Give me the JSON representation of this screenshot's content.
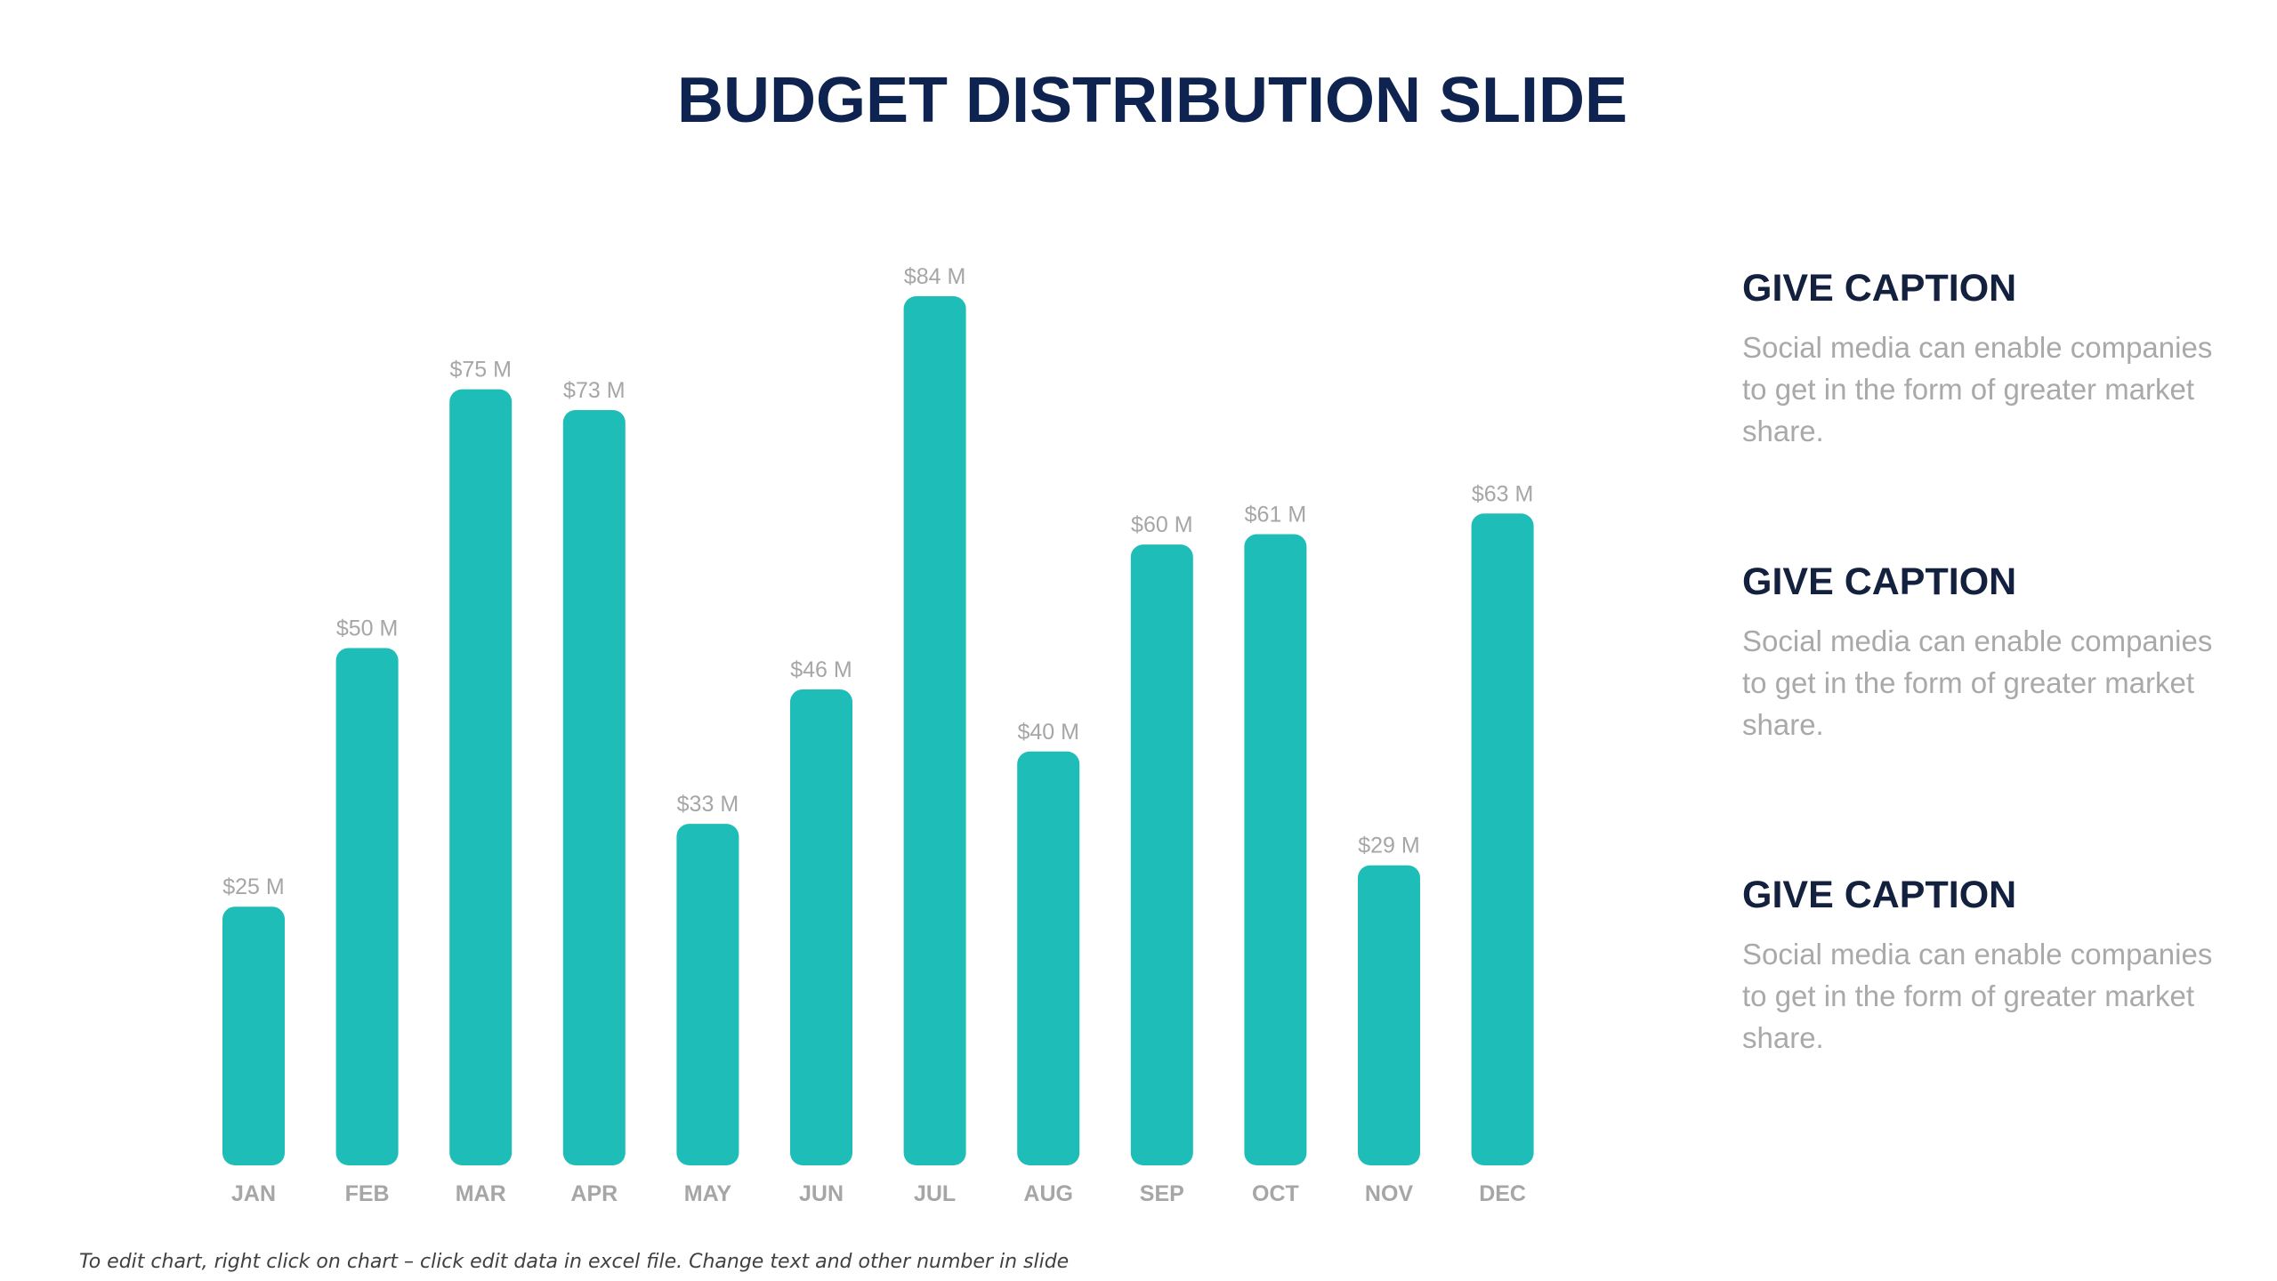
{
  "slide": {
    "title": "BUDGET DISTRIBUTION SLIDE",
    "footnote": "To edit chart, right click on chart – click edit data in excel file. Change text and other number in slide"
  },
  "captions": [
    {
      "heading": "GIVE CAPTION",
      "body": "Social media can enable companies to get in the form of greater market share."
    },
    {
      "heading": "GIVE CAPTION",
      "body": "Social media can enable companies to get in the form of greater market share."
    },
    {
      "heading": "GIVE CAPTION",
      "body": "Social media can enable companies to get in the form of greater market share."
    }
  ],
  "colors": {
    "bar": "#1ebdb7",
    "title": "#0f2350",
    "data_label": "#a6a6a6",
    "tick_label": "#a6a6a6"
  },
  "chart_data": {
    "type": "bar",
    "title": "",
    "xlabel": "",
    "ylabel": "",
    "categories": [
      "JAN",
      "FEB",
      "MAR",
      "APR",
      "MAY",
      "JUN",
      "JUL",
      "AUG",
      "SEP",
      "OCT",
      "NOV",
      "DEC"
    ],
    "values": [
      25,
      50,
      75,
      73,
      33,
      46,
      84,
      40,
      60,
      61,
      29,
      63
    ],
    "data_labels": [
      "$25 M",
      "$50 M",
      "$75 M",
      "$73 M",
      "$33 M",
      "$46 M",
      "$84 M",
      "$40 M",
      "$60 M",
      "$61 M",
      "$29 M",
      "$63 M"
    ],
    "ylim": [
      0,
      84
    ],
    "grid": false,
    "legend": "none"
  }
}
